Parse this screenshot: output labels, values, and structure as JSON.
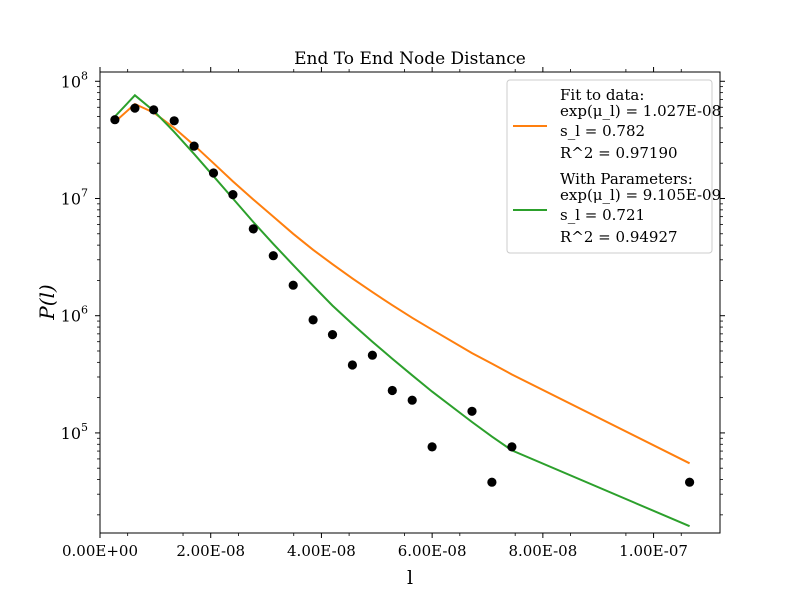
{
  "chart_data": {
    "type": "scatter",
    "title": "End To End Node Distance",
    "xlabel": "l",
    "ylabel": "P(l)",
    "xscale": "linear",
    "yscale": "log",
    "xlim": [
      0,
      1.12e-07
    ],
    "ylim": [
      14000,
      120000000
    ],
    "grid": false,
    "legend_position": "top-right",
    "x_ticks": [
      {
        "value": 0,
        "label": "0.00E+00"
      },
      {
        "value": 2e-08,
        "label": "2.00E-08"
      },
      {
        "value": 4e-08,
        "label": "4.00E-08"
      },
      {
        "value": 6e-08,
        "label": "6.00E-08"
      },
      {
        "value": 8e-08,
        "label": "8.00E-08"
      },
      {
        "value": 1e-07,
        "label": "1.00E-07"
      }
    ],
    "y_ticks": [
      {
        "value": 100000,
        "base": "10",
        "exp": "5"
      },
      {
        "value": 1000000,
        "base": "10",
        "exp": "6"
      },
      {
        "value": 10000000,
        "base": "10",
        "exp": "7"
      },
      {
        "value": 100000000,
        "base": "10",
        "exp": "8"
      }
    ],
    "data_points": {
      "color": "#000000",
      "x": [
        2.7e-09,
        6.3e-09,
        9.7e-09,
        1.34e-08,
        1.7e-08,
        2.05e-08,
        2.4e-08,
        2.77e-08,
        3.13e-08,
        3.49e-08,
        3.85e-08,
        4.2e-08,
        4.56e-08,
        4.92e-08,
        5.28e-08,
        5.64e-08,
        6e-08,
        6.72e-08,
        7.08e-08,
        7.44e-08,
        1.065e-07
      ],
      "y": [
        47000000,
        59000000,
        57000000,
        46000000,
        28000000,
        16500000,
        10800000,
        5500000,
        3250000,
        1820000,
        920000,
        690000,
        380000,
        460000,
        230000,
        190000,
        76000,
        153000,
        38000,
        76000,
        38000
      ]
    },
    "series": [
      {
        "name": "Fit to data:",
        "color": "#ff7f0e",
        "params": [
          "exp(μ_l) = 1.027E-08",
          "s_l = 0.782",
          "R^2 = 0.97190"
        ],
        "x": [
          2.7e-09,
          6.3e-09,
          9.7e-09,
          1.34e-08,
          1.7e-08,
          2.05e-08,
          2.4e-08,
          2.77e-08,
          3.13e-08,
          3.49e-08,
          3.85e-08,
          4.2e-08,
          4.56e-08,
          4.92e-08,
          5.28e-08,
          5.64e-08,
          6e-08,
          6.72e-08,
          7.08e-08,
          7.44e-08,
          1.065e-07
        ],
        "y": [
          45000000,
          64000000,
          54000000,
          40000000,
          28500000,
          20000000,
          14000000,
          9800000,
          7000000,
          5000000,
          3650000,
          2750000,
          2080000,
          1590000,
          1230000,
          960000,
          760000,
          480000,
          390000,
          315000,
          55000
        ]
      },
      {
        "name": "With Parameters:",
        "color": "#2ca02c",
        "params": [
          "exp(μ_l) = 9.105E-09",
          "s_l = 0.721",
          "R^2 = 0.94927"
        ],
        "x": [
          2.7e-09,
          6.3e-09,
          9.7e-09,
          1.34e-08,
          1.7e-08,
          2.05e-08,
          2.4e-08,
          2.77e-08,
          3.13e-08,
          3.49e-08,
          3.85e-08,
          4.2e-08,
          4.56e-08,
          4.92e-08,
          5.28e-08,
          5.64e-08,
          6e-08,
          6.72e-08,
          7.08e-08,
          7.44e-08,
          1.065e-07
        ],
        "y": [
          50000000,
          76000000,
          56000000,
          37000000,
          24000000,
          15500000,
          10000000,
          6300000,
          4100000,
          2700000,
          1800000,
          1220000,
          850000,
          600000,
          430000,
          310000,
          225000,
          124000,
          93000,
          71000,
          16000
        ]
      }
    ]
  }
}
